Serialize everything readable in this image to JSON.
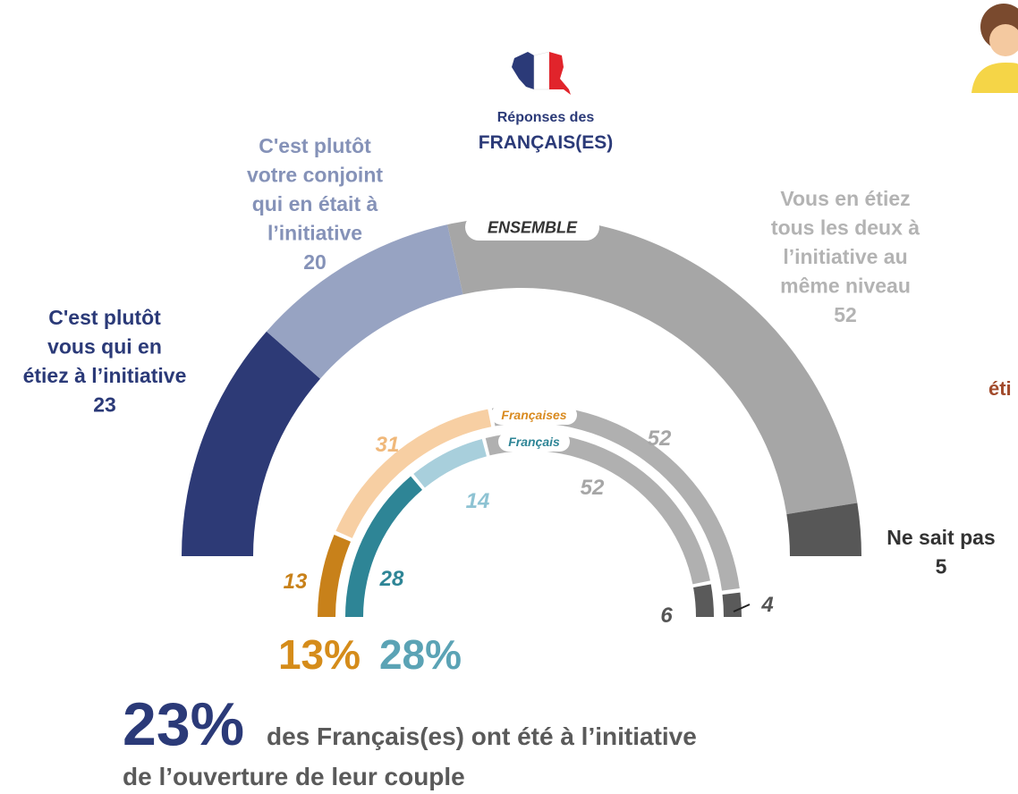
{
  "header": {
    "line1": "Réponses des",
    "line2": "FRANÇAIS(ES)"
  },
  "chart_data": [
    {
      "type": "semi-donut",
      "title": "ENSEMBLE",
      "categories": [
        "C'est plutôt\nvous qui en\nétiez à l’initiative",
        "C'est plutôt\nvotre conjoint\nqui en était à\nl’initiative",
        "Vous en étiez\ntous les deux à\nl’initiative au\nmême niveau",
        "Ne sait pas"
      ],
      "values": [
        23,
        20,
        52,
        5
      ],
      "colors": [
        "#2d3a76",
        "#97a3c2",
        "#a6a6a6",
        "#575757"
      ],
      "label_colors": [
        "#2b3a78",
        "#8592b8",
        "#b3b3b3",
        "#333333"
      ]
    },
    {
      "type": "semi-donut",
      "title": "Françaises",
      "values": [
        13,
        31,
        52,
        4
      ],
      "colors": [
        "#c8811a",
        "#f7cfa3",
        "#b0b0b0",
        "#5a5a5a"
      ],
      "label_colors": [
        "#c8811a",
        "#f0b87a",
        "#a6a6a6",
        "#555555"
      ]
    },
    {
      "type": "semi-donut",
      "title": "Français",
      "values": [
        28,
        14,
        52,
        6
      ],
      "colors": [
        "#2e8596",
        "#a8cfdc",
        "#b0b0b0",
        "#5a5a5a"
      ],
      "label_colors": [
        "#2e8596",
        "#8ec3d3",
        "#a6a6a6",
        "#555555"
      ]
    }
  ],
  "highlights": [
    "13%",
    "28%"
  ],
  "footer": {
    "big": "23%",
    "line1": "des Français(es) ont été à l’initiative",
    "line2": "de l’ouverture de leur couple"
  },
  "side_fragment": "éti"
}
